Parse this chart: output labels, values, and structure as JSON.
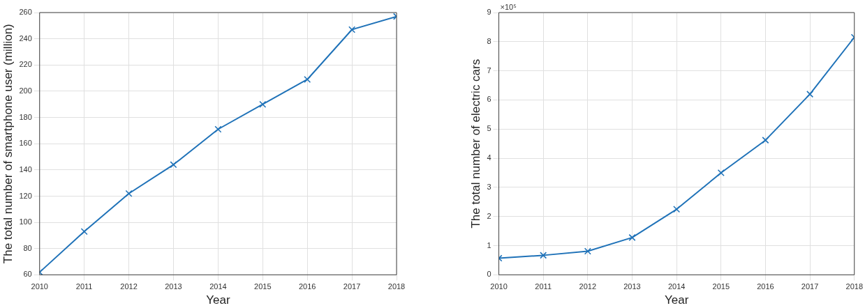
{
  "chart_data": [
    {
      "type": "line",
      "xlabel": "Year",
      "ylabel": "The total number of smartphone user (million)",
      "x": [
        2010,
        2011,
        2012,
        2013,
        2014,
        2015,
        2016,
        2017,
        2018
      ],
      "series": [
        {
          "color": "#1f72b8",
          "values": [
            62,
            93,
            122,
            144,
            171,
            190,
            209,
            247,
            257
          ]
        }
      ],
      "xlim": [
        2010,
        2018
      ],
      "xticks": [
        2010,
        2011,
        2012,
        2013,
        2014,
        2015,
        2016,
        2017,
        2018
      ],
      "ylim": [
        60,
        260
      ],
      "yticks": [
        60,
        80,
        100,
        120,
        140,
        160,
        180,
        200,
        220,
        240,
        260
      ],
      "grid": true,
      "legend": false,
      "marker": "cross",
      "line_style": "solid"
    },
    {
      "type": "line",
      "xlabel": "Year",
      "ylabel": "The total number of electric cars",
      "annotations": [
        "×10⁵"
      ],
      "x": [
        2010,
        2011,
        2012,
        2013,
        2014,
        2015,
        2016,
        2017,
        2018
      ],
      "series": [
        {
          "color": "#1f72b8",
          "values": [
            0.57,
            0.67,
            0.81,
            1.28,
            2.25,
            3.5,
            4.62,
            6.2,
            8.15
          ]
        }
      ],
      "xlim": [
        2010,
        2018
      ],
      "xticks": [
        2010,
        2011,
        2012,
        2013,
        2014,
        2015,
        2016,
        2017,
        2018
      ],
      "ylim": [
        0,
        9
      ],
      "yticks": [
        0,
        1,
        2,
        3,
        4,
        5,
        6,
        7,
        8,
        9
      ],
      "grid": true,
      "legend": false,
      "marker": "cross",
      "line_style": "solid"
    }
  ]
}
